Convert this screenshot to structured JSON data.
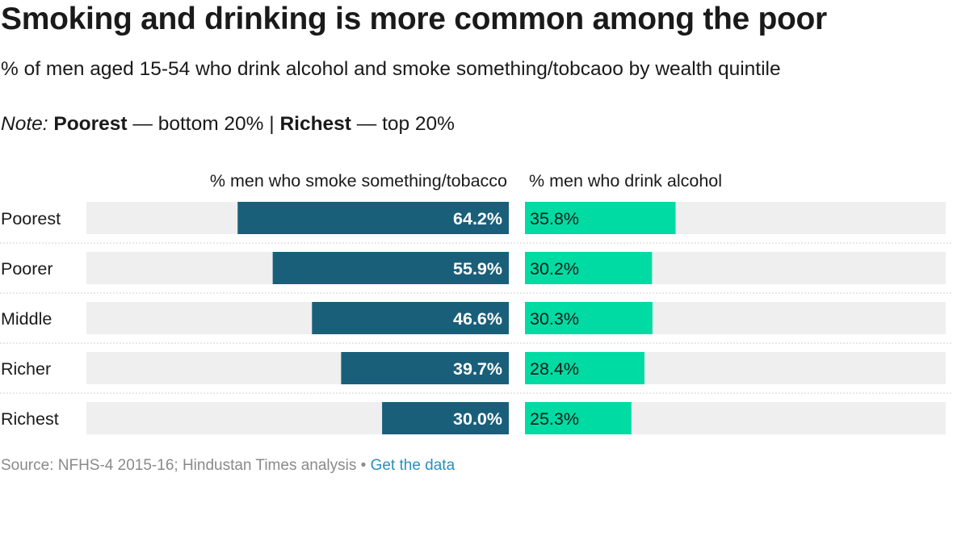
{
  "title": "Smoking and drinking is more common among the poor",
  "subtitle": "% of men aged 15-54 who drink alcohol and smoke something/tobcaoo by wealth quintile",
  "note": {
    "label": "Note:",
    "term1": "Poorest",
    "def1": " — bottom 20% | ",
    "term2": "Richest",
    "def2": " — top 20%"
  },
  "source": {
    "text": "Source: NFHS-4 2015-16; Hindustan Times analysis • ",
    "link": "Get the data"
  },
  "colors": {
    "smoke": "#1a5f7a",
    "drink": "#00dba3",
    "track": "#efefef",
    "divider": "#d0d0d0"
  },
  "chart_data": {
    "type": "bar",
    "orientation": "horizontal",
    "categories": [
      "Poorest",
      "Poorer",
      "Middle",
      "Richer",
      "Richest"
    ],
    "series": [
      {
        "name": "% men who smoke something/tobacco",
        "values": [
          64.2,
          55.9,
          46.6,
          39.7,
          30.0
        ],
        "labels": [
          "64.2%",
          "55.9%",
          "46.6%",
          "39.7%",
          "30.0%"
        ]
      },
      {
        "name": "% men who drink alcohol",
        "values": [
          35.8,
          30.2,
          30.3,
          28.4,
          25.3
        ],
        "labels": [
          "35.8%",
          "30.2%",
          "30.3%",
          "28.4%",
          "25.3%"
        ]
      }
    ],
    "xlim": [
      0,
      100
    ],
    "grid": false,
    "legend": "column headers"
  }
}
